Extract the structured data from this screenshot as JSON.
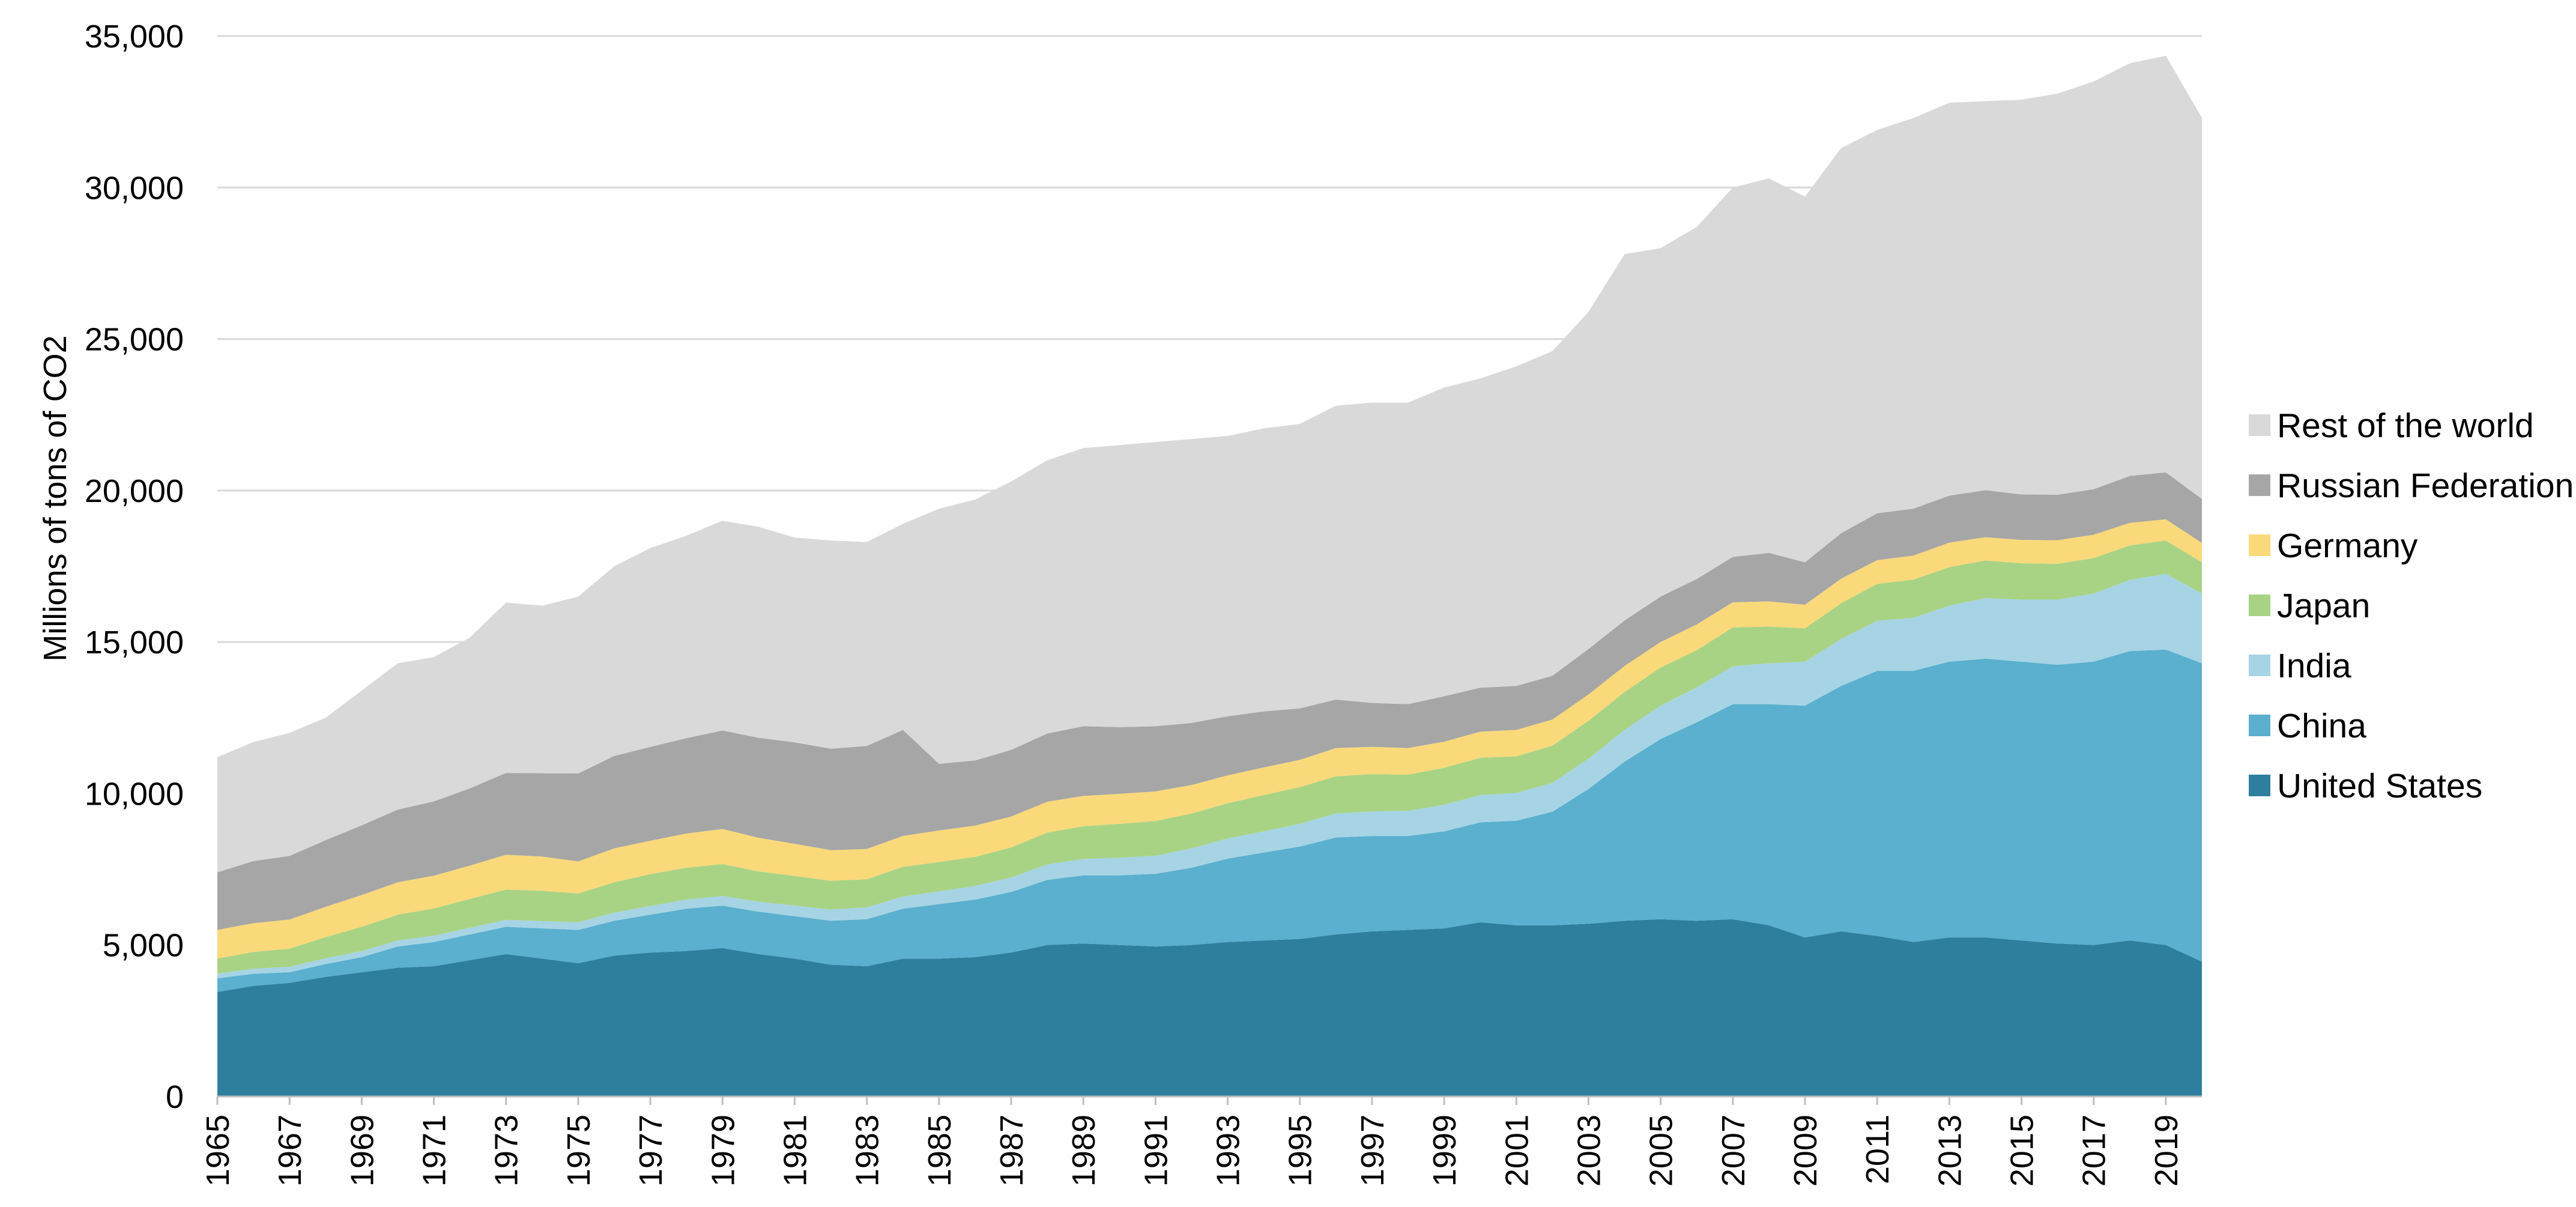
{
  "chart_data": {
    "type": "area",
    "stacked": true,
    "title": "",
    "xlabel": "",
    "ylabel": "Millions of tons of CO2",
    "ylim": [
      0,
      35000
    ],
    "y_ticks": [
      "0",
      "5,000",
      "10,000",
      "15,000",
      "20,000",
      "25,000",
      "30,000",
      "35,000"
    ],
    "y_tick_values": [
      0,
      5000,
      10000,
      15000,
      20000,
      25000,
      30000,
      35000
    ],
    "x_tick_years": [
      1965,
      1967,
      1969,
      1971,
      1973,
      1975,
      1977,
      1979,
      1981,
      1983,
      1985,
      1987,
      1989,
      1991,
      1993,
      1995,
      1997,
      1999,
      2001,
      2003,
      2005,
      2007,
      2009,
      2011,
      2013,
      2015,
      2017,
      2019
    ],
    "x_tick_labels": [
      "1965",
      "1967",
      "1969",
      "1971",
      "1973",
      "1975",
      "1977",
      "1979",
      "1981",
      "1983",
      "1985",
      "1987",
      "1989",
      "1991",
      "1993",
      "1995",
      "1997",
      "1999",
      "2001",
      "2003",
      "2005",
      "2007",
      "2009",
      "2011",
      "2013",
      "2015",
      "2017",
      "2019"
    ],
    "grid": true,
    "legend_position": "right",
    "x": [
      1965,
      1966,
      1967,
      1968,
      1969,
      1970,
      1971,
      1972,
      1973,
      1974,
      1975,
      1976,
      1977,
      1978,
      1979,
      1980,
      1981,
      1982,
      1983,
      1984,
      1985,
      1986,
      1987,
      1988,
      1989,
      1990,
      1991,
      1992,
      1993,
      1994,
      1995,
      1996,
      1997,
      1998,
      1999,
      2000,
      2001,
      2002,
      2003,
      2004,
      2005,
      2006,
      2007,
      2008,
      2009,
      2010,
      2011,
      2012,
      2013,
      2014,
      2015,
      2016,
      2017,
      2018,
      2019,
      2020
    ],
    "series": [
      {
        "name": "United States",
        "color": "#2e7f9e",
        "values": [
          3450,
          3650,
          3750,
          3950,
          4100,
          4250,
          4300,
          4500,
          4700,
          4550,
          4400,
          4650,
          4750,
          4800,
          4900,
          4700,
          4550,
          4350,
          4300,
          4550,
          4550,
          4600,
          4750,
          5000,
          5050,
          5000,
          4950,
          5000,
          5100,
          5150,
          5200,
          5350,
          5450,
          5500,
          5550,
          5750,
          5650,
          5650,
          5700,
          5800,
          5850,
          5800,
          5850,
          5650,
          5250,
          5450,
          5300,
          5100,
          5250,
          5250,
          5150,
          5050,
          5000,
          5150,
          5000,
          4450
        ]
      },
      {
        "name": "China",
        "color": "#5ab0ce",
        "values": [
          450,
          400,
          350,
          420,
          500,
          700,
          800,
          850,
          900,
          1000,
          1100,
          1150,
          1250,
          1400,
          1400,
          1400,
          1400,
          1450,
          1550,
          1650,
          1800,
          1900,
          2000,
          2150,
          2250,
          2300,
          2400,
          2550,
          2750,
          2900,
          3050,
          3200,
          3150,
          3100,
          3200,
          3300,
          3450,
          3750,
          4450,
          5250,
          5950,
          6550,
          7100,
          7300,
          7650,
          8100,
          8750,
          8950,
          9100,
          9200,
          9200,
          9200,
          9350,
          9550,
          9750,
          9850
        ]
      },
      {
        "name": "India",
        "color": "#a6d4e4",
        "values": [
          150,
          170,
          180,
          190,
          200,
          200,
          210,
          220,
          230,
          240,
          250,
          270,
          290,
          300,
          320,
          330,
          350,
          370,
          390,
          400,
          420,
          450,
          480,
          510,
          540,
          580,
          600,
          640,
          670,
          700,
          750,
          790,
          810,
          830,
          880,
          900,
          920,
          950,
          1000,
          1050,
          1100,
          1150,
          1250,
          1350,
          1450,
          1550,
          1650,
          1750,
          1850,
          2000,
          2050,
          2150,
          2250,
          2350,
          2500,
          2300
        ]
      },
      {
        "name": "Japan",
        "color": "#a8d384",
        "values": [
          500,
          550,
          600,
          700,
          800,
          850,
          900,
          950,
          1000,
          1000,
          950,
          1000,
          1050,
          1050,
          1050,
          1000,
          980,
          950,
          930,
          980,
          970,
          960,
          990,
          1050,
          1080,
          1120,
          1140,
          1150,
          1160,
          1200,
          1210,
          1230,
          1230,
          1190,
          1220,
          1230,
          1210,
          1230,
          1250,
          1250,
          1260,
          1230,
          1280,
          1210,
          1100,
          1180,
          1220,
          1260,
          1270,
          1240,
          1200,
          1180,
          1170,
          1140,
          1100,
          1030
        ]
      },
      {
        "name": "Germany",
        "color": "#fad97a",
        "values": [
          950,
          950,
          960,
          1000,
          1050,
          1070,
          1080,
          1100,
          1150,
          1130,
          1060,
          1120,
          1100,
          1130,
          1160,
          1110,
          1060,
          1010,
          1000,
          1020,
          1040,
          1030,
          1020,
          1020,
          1000,
          990,
          980,
          940,
          920,
          910,
          900,
          930,
          900,
          880,
          860,
          860,
          870,
          860,
          870,
          860,
          840,
          850,
          830,
          830,
          780,
          810,
          780,
          790,
          810,
          770,
          770,
          780,
          770,
          740,
          700,
          640
        ]
      },
      {
        "name": "Russian Federation",
        "color": "#a6a6a6",
        "values": [
          1900,
          2050,
          2100,
          2200,
          2300,
          2400,
          2450,
          2550,
          2700,
          2750,
          2900,
          3050,
          3100,
          3150,
          3250,
          3300,
          3350,
          3350,
          3400,
          3500,
          2200,
          2150,
          2200,
          2250,
          2300,
          2200,
          2150,
          2050,
          1950,
          1850,
          1700,
          1600,
          1450,
          1450,
          1500,
          1450,
          1450,
          1450,
          1500,
          1500,
          1500,
          1500,
          1500,
          1600,
          1400,
          1500,
          1550,
          1550,
          1550,
          1550,
          1500,
          1500,
          1500,
          1550,
          1550,
          1450
        ]
      },
      {
        "name": "Rest of the world",
        "color": "#d9d9d9",
        "values": [
          3800,
          3930,
          4060,
          4040,
          4450,
          4830,
          4760,
          4980,
          5620,
          5530,
          5840,
          6260,
          6560,
          6680,
          6920,
          6960,
          6760,
          6870,
          6730,
          6800,
          8420,
          8610,
          8860,
          9020,
          9180,
          9310,
          9380,
          9370,
          9250,
          9340,
          9390,
          9700,
          9910,
          9950,
          10190,
          10210,
          10550,
          10710,
          11130,
          12090,
          11500,
          11620,
          12190,
          12360,
          12070,
          12710,
          12650,
          12890,
          12970,
          12840,
          13030,
          13240,
          13460,
          13620,
          13750,
          12580
        ]
      }
    ]
  }
}
